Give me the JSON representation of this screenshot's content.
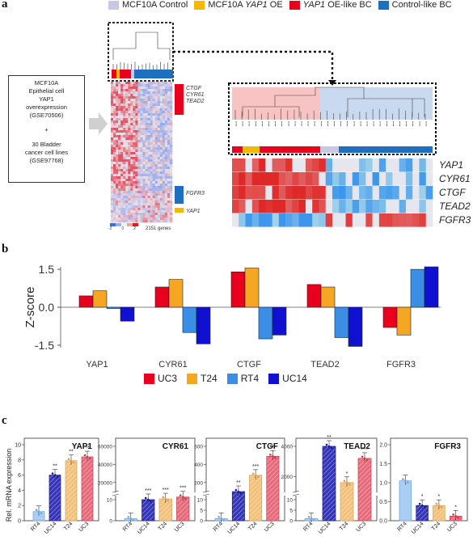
{
  "panels": {
    "a": "a",
    "b": "b",
    "c": "c"
  },
  "legend_top": [
    {
      "label": "MCF10A Control",
      "color": "#c8c8e6"
    },
    {
      "label_pre": "MCF10A ",
      "label_it": "YAP1",
      "label_post": " OE",
      "color": "#f5b800"
    },
    {
      "label_pre": "",
      "label_it": "YAP1",
      "label_post": " OE-like BC",
      "color": "#e8001c"
    },
    {
      "label": "Control-like BC",
      "color": "#1f6fc0"
    }
  ],
  "box_text": {
    "line1": "MCF10A",
    "line2": "Epithelial cell",
    "line3": "YAP1",
    "line4": "overexpression",
    "line5": "(GSE70506)",
    "line6": "+",
    "line7": "30 Bladder",
    "line8": "cancer cell lines",
    "line9": "(GSE97768)"
  },
  "heatmap_small_labels": {
    "red_genes": [
      "CTGF",
      "CYR61",
      "TEAD2"
    ],
    "blue_gene": "FGFR3",
    "yellow_gene": "YAP1",
    "scale_note": "2151 genes",
    "scale_ticks": [
      "-2",
      "0",
      "2"
    ]
  },
  "zoom_heatmap": {
    "rows": [
      "YAP1",
      "CYR61",
      "CTGF",
      "TEAD2",
      "FGFR3"
    ]
  },
  "chart_data": [
    {
      "type": "bar",
      "categories": [
        "YAP1",
        "CYR61",
        "CTGF",
        "TEAD2",
        "FGFR3"
      ],
      "series": [
        {
          "name": "UC3",
          "color": "#e8001c",
          "values": [
            0.45,
            0.8,
            1.4,
            0.9,
            -0.8
          ]
        },
        {
          "name": "T24",
          "color": "#f5a623",
          "values": [
            0.65,
            1.1,
            1.55,
            0.8,
            -1.1
          ]
        },
        {
          "name": "RT4",
          "color": "#3a8ee6",
          "values": [
            -0.05,
            -1.0,
            -1.25,
            -1.2,
            1.5
          ]
        },
        {
          "name": "UC14",
          "color": "#1010d0",
          "values": [
            -0.55,
            -1.45,
            -1.1,
            -1.55,
            1.6
          ]
        }
      ],
      "ylabel": "Z-score",
      "ylim": [
        -1.6,
        1.6
      ],
      "yticks": [
        "1.5",
        "0.0",
        "-1.5"
      ]
    },
    {
      "type": "bar",
      "title": "YAP1",
      "categories": [
        "RT4",
        "UC14",
        "T24",
        "UC3"
      ],
      "values": [
        1.2,
        6.0,
        7.9,
        8.4
      ],
      "ylim": [
        0,
        10
      ],
      "yticks": [
        "0",
        "2",
        "4",
        "6",
        "8",
        "10"
      ],
      "stars": [
        "",
        "**",
        "**",
        "**"
      ],
      "ylabel": "Rel. mRNA expression"
    },
    {
      "type": "bar",
      "title": "CYR61",
      "categories": [
        "RT4",
        "UC14",
        "T24",
        "UC3"
      ],
      "values": [
        1,
        1100,
        1900,
        4000
      ],
      "yticks_low": [
        "0",
        "10"
      ],
      "yticks_high": [
        "20000",
        "40000",
        "60000"
      ],
      "stars": [
        "",
        "***",
        "***",
        "***"
      ]
    },
    {
      "type": "bar",
      "title": "CTGF",
      "categories": [
        "RT4",
        "UC14",
        "T24",
        "UC3"
      ],
      "values": [
        1,
        100,
        280,
        490
      ],
      "yticks_low": [
        "0",
        "5",
        "10"
      ],
      "yticks_high": [
        "200",
        "400",
        "600"
      ],
      "stars": [
        "",
        "**",
        "***",
        "***"
      ]
    },
    {
      "type": "bar",
      "title": "TEAD2",
      "categories": [
        "RT4",
        "UC14",
        "T24",
        "UC3"
      ],
      "values": [
        1,
        4000,
        1600,
        3200
      ],
      "yticks_low": [
        "0",
        "5",
        "10"
      ],
      "yticks_high": [
        "2000",
        "4000"
      ],
      "stars": [
        "",
        "**",
        "*",
        "***"
      ]
    },
    {
      "type": "bar",
      "title": "FGFR3",
      "categories": [
        "RT4",
        "UC14",
        "T24",
        "UC3"
      ],
      "values": [
        1.05,
        0.4,
        0.4,
        0.12
      ],
      "ylim": [
        0,
        2.0
      ],
      "yticks": [
        "0.0",
        "0.5",
        "1.0",
        "1.5",
        "2.0"
      ],
      "stars": [
        "",
        "*",
        "*",
        "*"
      ]
    }
  ],
  "colors": {
    "uc3": "#e8001c",
    "t24": "#f5a623",
    "rt4": "#3a8ee6",
    "uc14": "#1010d0",
    "rt4_c": "#a9cdf3",
    "uc14_c": "#2b2bb0",
    "t24_c": "#f2c27c",
    "uc3_c": "#e86a7a"
  }
}
